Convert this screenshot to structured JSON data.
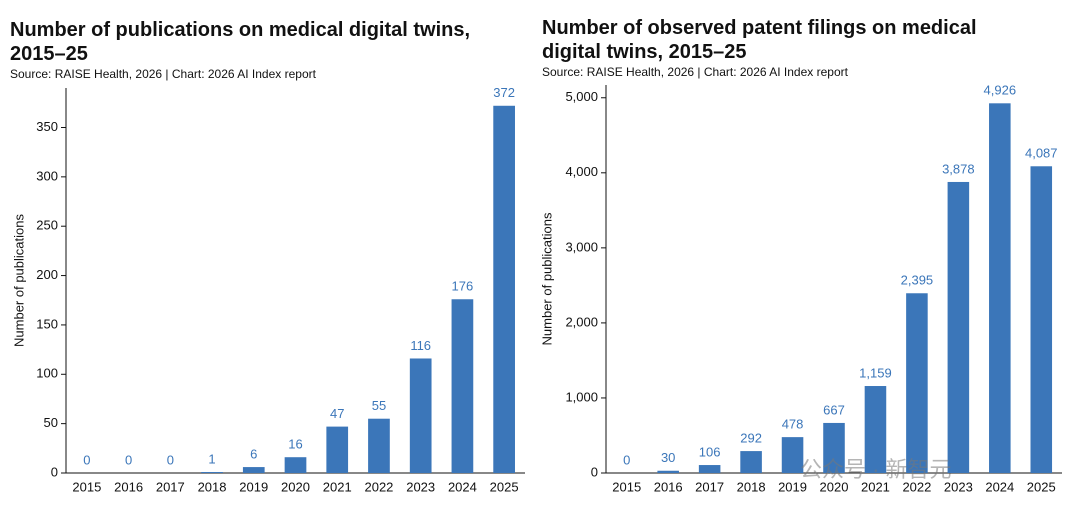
{
  "chart_data": [
    {
      "type": "bar",
      "title": "Number of publications on medical digital twins, 2015–25",
      "subtitle": "Source: RAISE Health, 2026 | Chart: 2026 AI Index report",
      "y_label": "Number of publications",
      "categories": [
        "2015",
        "2016",
        "2017",
        "2018",
        "2019",
        "2020",
        "2021",
        "2022",
        "2023",
        "2024",
        "2025"
      ],
      "values": [
        0,
        0,
        0,
        1,
        6,
        16,
        47,
        55,
        116,
        176,
        372
      ],
      "color": "#3b76b9",
      "ylim": [
        0,
        390
      ],
      "yticks": [
        0,
        50,
        100,
        150,
        200,
        250,
        300,
        350
      ]
    },
    {
      "type": "bar",
      "title": "Number of observed patent filings on medical digital twins, 2015–25",
      "subtitle": "Source: RAISE Health, 2026 | Chart: 2026 AI Index report",
      "y_label": "Number of publications",
      "categories": [
        "2015",
        "2016",
        "2017",
        "2018",
        "2019",
        "2020",
        "2021",
        "2022",
        "2023",
        "2024",
        "2025"
      ],
      "values": [
        0,
        30,
        106,
        292,
        478,
        667,
        1159,
        2395,
        3878,
        4926,
        4087
      ],
      "value_labels": [
        "0",
        "30",
        "106",
        "292",
        "478",
        "667",
        "1,159",
        "2,395",
        "3,878",
        "4,926",
        "4,087"
      ],
      "color": "#3b76b9",
      "ylim": [
        0,
        5170
      ],
      "yticks": [
        0,
        {
          "value": 1000,
          "label": "1,000"
        },
        {
          "value": 2000,
          "label": "2,000"
        },
        {
          "value": 3000,
          "label": "3,000"
        },
        {
          "value": 4000,
          "label": "4,000"
        },
        {
          "value": 5000,
          "label": "5,000"
        }
      ]
    }
  ],
  "watermark": "公众号 · 新智元"
}
